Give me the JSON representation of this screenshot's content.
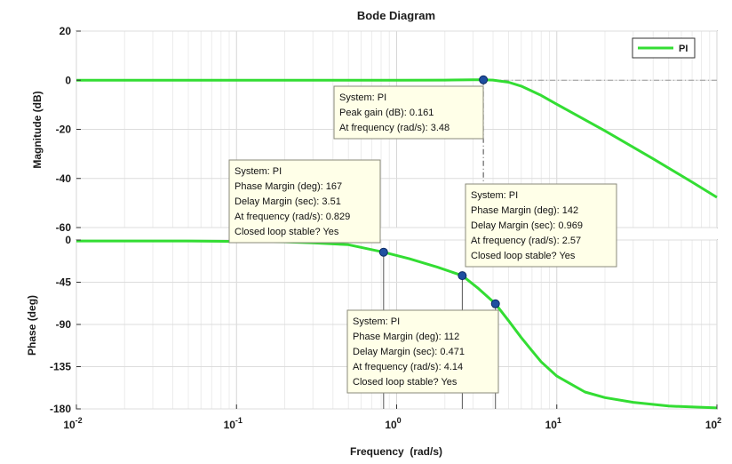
{
  "chart_data": [
    {
      "type": "line",
      "title": "Bode Diagram",
      "ylabel": "Magnitude (dB)",
      "xscale": "log",
      "xlim": [
        0.01,
        100
      ],
      "ylim": [
        -60,
        20
      ],
      "y_ticks": [
        "20",
        "0",
        "-20",
        "-40",
        "-60"
      ],
      "grid": true,
      "legend": {
        "placement": "top-right",
        "entries": [
          "PI"
        ]
      },
      "series": [
        {
          "name": "PI",
          "color": "#33dd33",
          "x": [
            0.01,
            0.1,
            1,
            2,
            3,
            3.48,
            4,
            5,
            6,
            8,
            10,
            20,
            40,
            70,
            100
          ],
          "y": [
            0,
            0,
            0,
            0.05,
            0.15,
            0.161,
            0.05,
            -0.8,
            -2.4,
            -6.2,
            -9.8,
            -20.6,
            -32.0,
            -41.5,
            -47.7
          ]
        }
      ],
      "reference_line": {
        "y": 0,
        "style": "dash-dot",
        "color": "#999999"
      },
      "marker": {
        "x": 3.48,
        "y": 0.161
      },
      "datatip": {
        "lines": [
          "System: PI",
          "Peak gain (dB): 0.161",
          "At frequency (rad/s): 3.48"
        ]
      }
    },
    {
      "type": "line",
      "ylabel": "Phase (deg)",
      "xlabel": "Frequency  (rad/s)",
      "xscale": "log",
      "xlim": [
        0.01,
        100
      ],
      "ylim": [
        -180,
        0
      ],
      "y_ticks": [
        "0",
        "-45",
        "-90",
        "-135",
        "-180"
      ],
      "x_ticks": [
        {
          "base": "10",
          "exp": "-2"
        },
        {
          "base": "10",
          "exp": "-1"
        },
        {
          "base": "10",
          "exp": "0"
        },
        {
          "base": "10",
          "exp": "1"
        },
        {
          "base": "10",
          "exp": "2"
        }
      ],
      "grid": true,
      "series": [
        {
          "name": "PI",
          "color": "#33dd33",
          "x": [
            0.01,
            0.05,
            0.1,
            0.2,
            0.3,
            0.5,
            0.829,
            1.2,
            1.8,
            2.57,
            3.2,
            4.14,
            5,
            6,
            7,
            8,
            10,
            15,
            20,
            30,
            50,
            100
          ],
          "y": [
            -1,
            -1,
            -1.5,
            -2,
            -3,
            -5,
            -13,
            -20,
            -29,
            -38,
            -51,
            -68,
            -86,
            -104,
            -118,
            -130,
            -145,
            -162,
            -168,
            -173,
            -177,
            -179
          ]
        }
      ],
      "markers": [
        {
          "x": 0.829,
          "y": -13
        },
        {
          "x": 2.57,
          "y": -38
        },
        {
          "x": 4.14,
          "y": -68
        }
      ],
      "datatips": [
        {
          "lines": [
            "System: PI",
            "Phase Margin (deg): 167",
            "Delay Margin (sec): 3.51",
            "At frequency (rad/s): 0.829",
            "Closed loop stable? Yes"
          ]
        },
        {
          "lines": [
            "System: PI",
            "Phase Margin (deg): 142",
            "Delay Margin (sec): 0.969",
            "At frequency (rad/s): 2.57",
            "Closed loop stable? Yes"
          ]
        },
        {
          "lines": [
            "System: PI",
            "Phase Margin (deg): 112",
            "Delay Margin (sec): 0.471",
            "At frequency (rad/s): 4.14",
            "Closed loop stable? Yes"
          ]
        }
      ]
    }
  ]
}
